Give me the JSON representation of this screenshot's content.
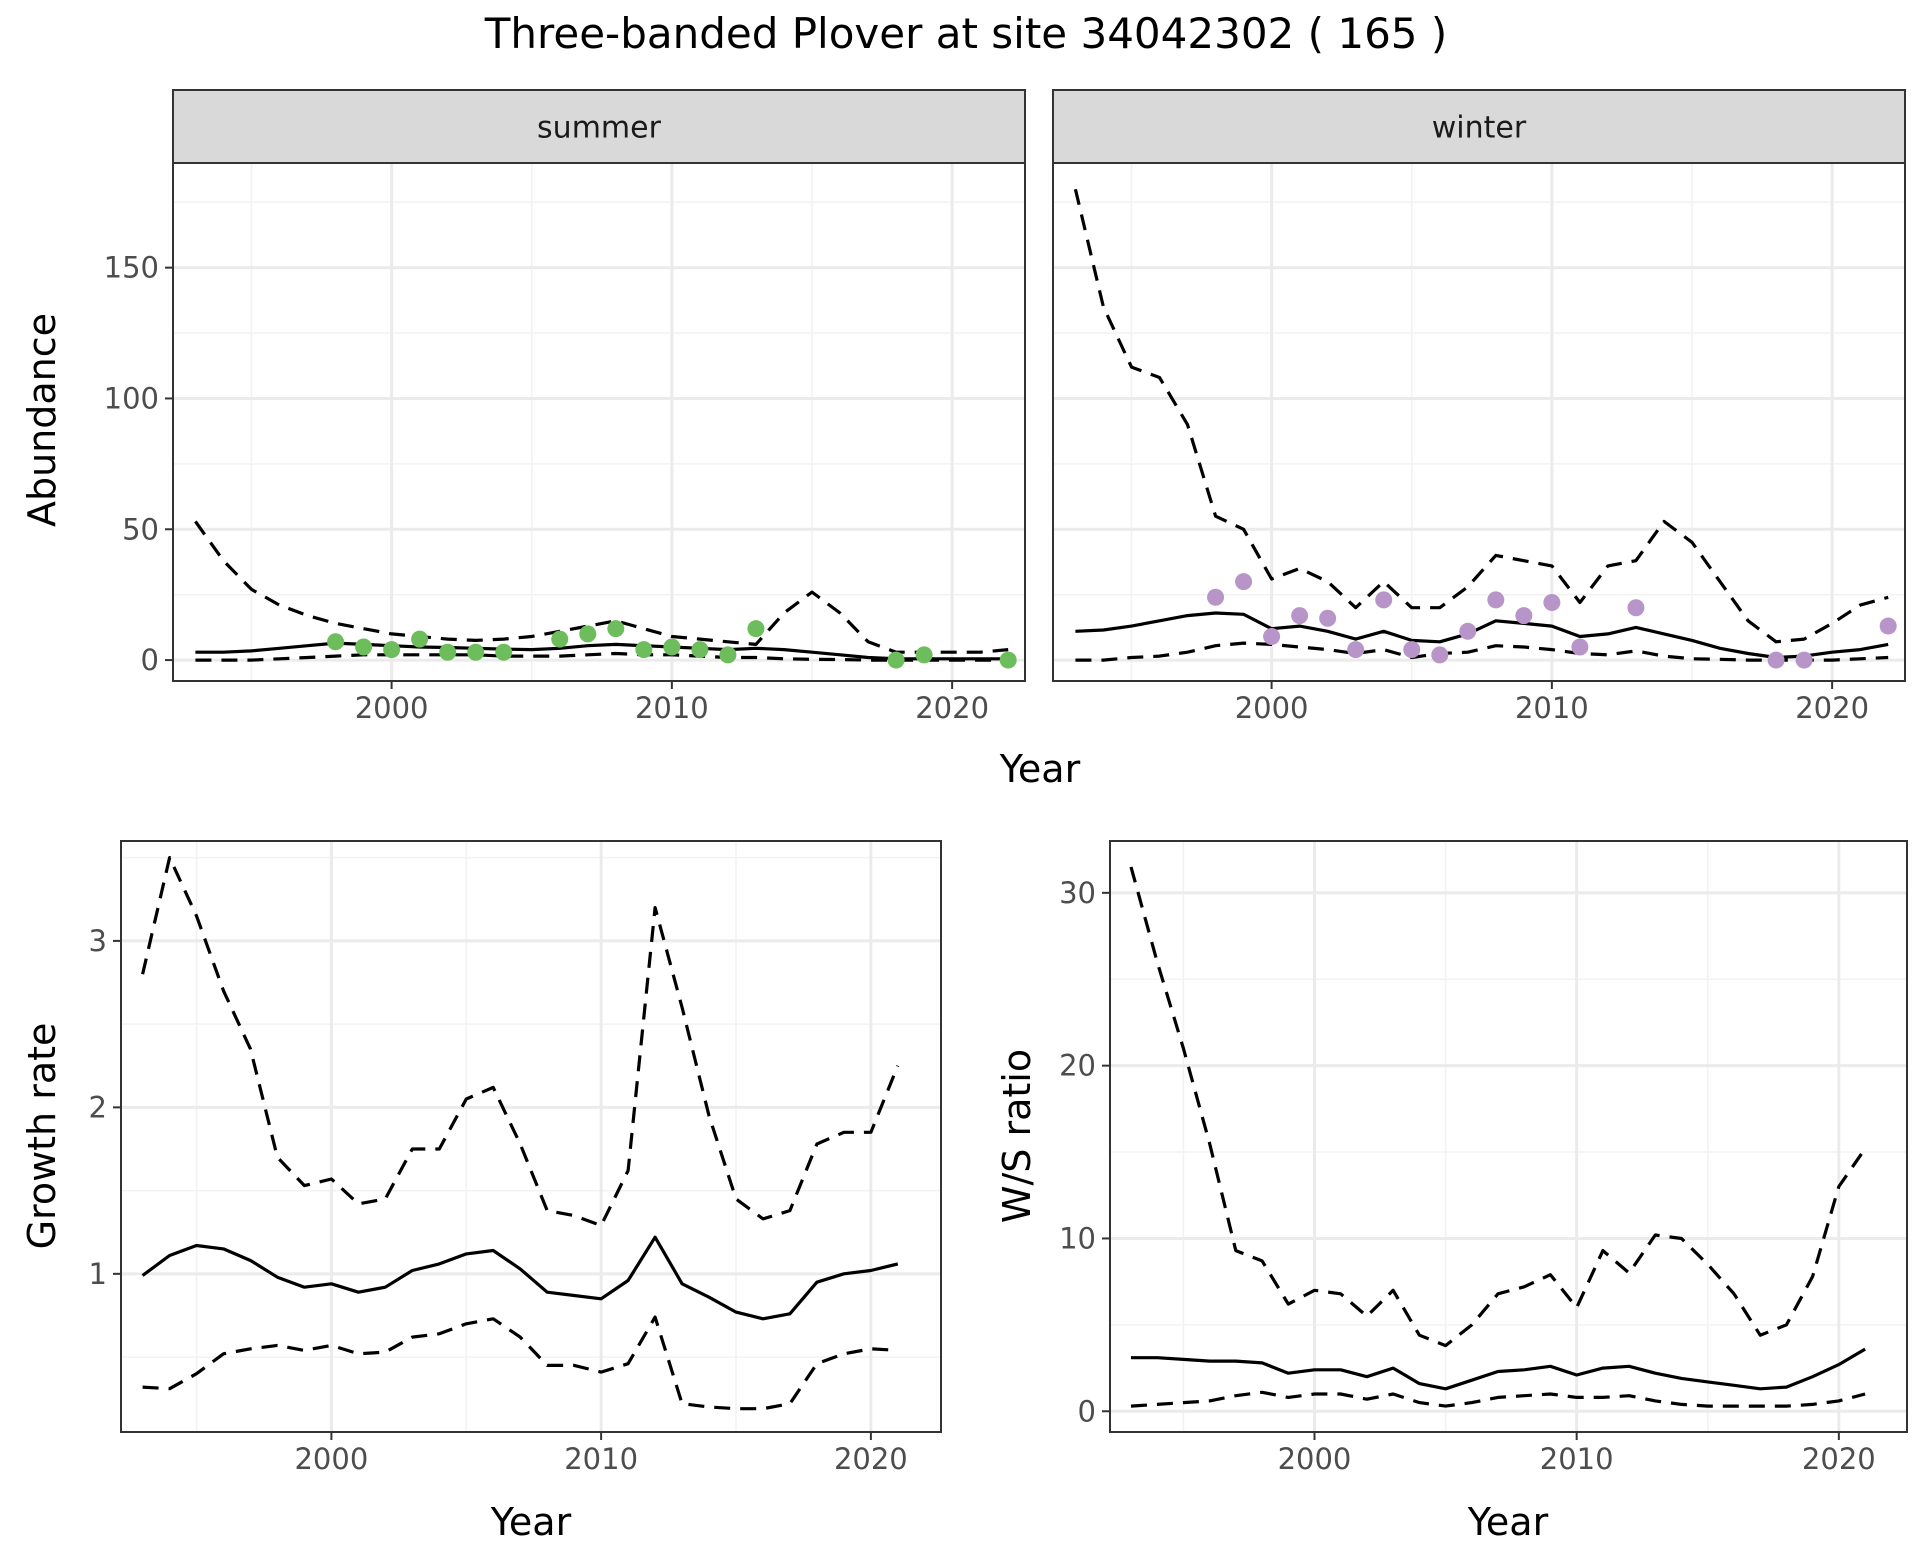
{
  "title": "Three-banded Plover at site 34042302 ( 165 )",
  "colors": {
    "summer_points": "#6dbd5c",
    "winter_points": "#b895c8",
    "lines": "#000000"
  },
  "chart_data": [
    {
      "type": "line",
      "facet": "summer",
      "xlabel": "Year",
      "ylabel": "Abundance",
      "xlim": [
        1992.2,
        2022.6
      ],
      "ylim": [
        -8,
        190
      ],
      "xticks": [
        2000,
        2010,
        2020
      ],
      "yticks": [
        0,
        50,
        100,
        150
      ],
      "grid": true,
      "x": [
        1993,
        1994,
        1995,
        1996,
        1997,
        1998,
        1999,
        2000,
        2001,
        2002,
        2003,
        2004,
        2005,
        2006,
        2007,
        2008,
        2009,
        2010,
        2011,
        2012,
        2013,
        2014,
        2015,
        2016,
        2017,
        2018,
        2019,
        2020,
        2021,
        2022
      ],
      "series": [
        {
          "role": "mean",
          "values": [
            3,
            3,
            3.5,
            4.5,
            5.5,
            6.5,
            6,
            5.5,
            5,
            4.8,
            4.5,
            4.2,
            4,
            4.5,
            5.5,
            6,
            5.5,
            5,
            4.5,
            4,
            4.5,
            4,
            3,
            2,
            1,
            0.5,
            0.5,
            0.5,
            0.5,
            0.5
          ]
        },
        {
          "role": "upper",
          "values": [
            53,
            38,
            27,
            21,
            17,
            14,
            12,
            10,
            9,
            8,
            7.5,
            8,
            9,
            11,
            13,
            15,
            12,
            9,
            8,
            7,
            6,
            18,
            26,
            18,
            7,
            3,
            3,
            3,
            3,
            4
          ]
        },
        {
          "role": "lower",
          "values": [
            0,
            0,
            0,
            0.5,
            1,
            1.5,
            2,
            2,
            2,
            2,
            2,
            1.5,
            1.5,
            1.5,
            2,
            2.5,
            2,
            2,
            1.5,
            1,
            1,
            0.5,
            0.3,
            0.2,
            0,
            0,
            0,
            0,
            0,
            0
          ]
        }
      ],
      "points": {
        "x": [
          1998,
          1999,
          2000,
          2001,
          2002,
          2003,
          2004,
          2006,
          2007,
          2008,
          2009,
          2010,
          2011,
          2012,
          2013,
          2018,
          2019,
          2022
        ],
        "y": [
          7,
          5,
          4,
          8,
          3,
          3,
          3,
          8,
          10,
          12,
          4,
          5,
          4,
          2,
          12,
          0,
          2,
          0
        ]
      }
    },
    {
      "type": "line",
      "facet": "winter",
      "xlabel": "Year",
      "ylabel": "Abundance",
      "xlim": [
        1992.2,
        2022.6
      ],
      "ylim": [
        -8,
        190
      ],
      "xticks": [
        2000,
        2010,
        2020
      ],
      "yticks": [
        0,
        50,
        100,
        150
      ],
      "grid": true,
      "x": [
        1993,
        1994,
        1995,
        1996,
        1997,
        1998,
        1999,
        2000,
        2001,
        2002,
        2003,
        2004,
        2005,
        2006,
        2007,
        2008,
        2009,
        2010,
        2011,
        2012,
        2013,
        2014,
        2015,
        2016,
        2017,
        2018,
        2019,
        2020,
        2021,
        2022
      ],
      "series": [
        {
          "role": "mean",
          "values": [
            11,
            11.5,
            13,
            15,
            17,
            18,
            17.5,
            12,
            13,
            11,
            8,
            11,
            7.5,
            7,
            10,
            15,
            14,
            13,
            9,
            10,
            12.5,
            10,
            7.5,
            4.5,
            2.5,
            1,
            1.5,
            3,
            4,
            6
          ]
        },
        {
          "role": "upper",
          "values": [
            180,
            135,
            112,
            108,
            90,
            55,
            50,
            31,
            35,
            30,
            20,
            30,
            20,
            20,
            28,
            40,
            38,
            36,
            22,
            36,
            38,
            53,
            45,
            30,
            15,
            7,
            8,
            14,
            21,
            24
          ]
        },
        {
          "role": "lower",
          "values": [
            0,
            0,
            1,
            1.5,
            3,
            5.5,
            6.5,
            6,
            5,
            4,
            2.5,
            4,
            1,
            2.5,
            3,
            5.5,
            5,
            4,
            2.5,
            2,
            3.5,
            1.5,
            0.5,
            0.3,
            0,
            0,
            0,
            0,
            0.5,
            1
          ]
        }
      ],
      "points": {
        "x": [
          1998,
          1999,
          2000,
          2001,
          2002,
          2003,
          2004,
          2005,
          2006,
          2007,
          2008,
          2009,
          2010,
          2011,
          2013,
          2018,
          2019,
          2022
        ],
        "y": [
          24,
          30,
          9,
          17,
          16,
          4,
          23,
          4,
          2,
          11,
          23,
          17,
          22,
          5,
          20,
          0,
          0,
          13
        ]
      }
    },
    {
      "type": "line",
      "xlabel": "Year",
      "ylabel": "Growth rate",
      "xlim": [
        1992.2,
        2022.6
      ],
      "ylim": [
        0.05,
        3.6
      ],
      "xticks": [
        2000,
        2010,
        2020
      ],
      "yticks": [
        1,
        2,
        3
      ],
      "grid": true,
      "x": [
        1993,
        1994,
        1995,
        1996,
        1997,
        1998,
        1999,
        2000,
        2001,
        2002,
        2003,
        2004,
        2005,
        2006,
        2007,
        2008,
        2009,
        2010,
        2011,
        2012,
        2013,
        2014,
        2015,
        2016,
        2017,
        2018,
        2019,
        2020,
        2021
      ],
      "series": [
        {
          "role": "mean",
          "values": [
            0.99,
            1.11,
            1.17,
            1.15,
            1.08,
            0.98,
            0.92,
            0.94,
            0.89,
            0.92,
            1.02,
            1.06,
            1.12,
            1.14,
            1.03,
            0.89,
            0.87,
            0.85,
            0.96,
            1.22,
            0.94,
            0.86,
            0.77,
            0.73,
            0.76,
            0.95,
            1.0,
            1.02,
            1.06
          ]
        },
        {
          "role": "upper",
          "values": [
            2.8,
            3.5,
            3.15,
            2.7,
            2.35,
            1.7,
            1.53,
            1.57,
            1.42,
            1.45,
            1.75,
            1.75,
            2.05,
            2.12,
            1.78,
            1.38,
            1.35,
            1.29,
            1.62,
            3.2,
            2.6,
            1.95,
            1.45,
            1.33,
            1.38,
            1.78,
            1.85,
            1.85,
            2.25
          ]
        },
        {
          "role": "lower",
          "values": [
            0.32,
            0.31,
            0.4,
            0.52,
            0.55,
            0.57,
            0.54,
            0.57,
            0.52,
            0.53,
            0.62,
            0.64,
            0.7,
            0.73,
            0.62,
            0.45,
            0.45,
            0.41,
            0.46,
            0.74,
            0.22,
            0.2,
            0.19,
            0.19,
            0.22,
            0.46,
            0.52,
            0.55,
            0.54
          ]
        }
      ]
    },
    {
      "type": "line",
      "xlabel": "Year",
      "ylabel": "W/S ratio",
      "xlim": [
        1992.2,
        2022.6
      ],
      "ylim": [
        -1.2,
        33
      ],
      "xticks": [
        2000,
        2010,
        2020
      ],
      "yticks": [
        0,
        10,
        20,
        30
      ],
      "grid": true,
      "x": [
        1993,
        1994,
        1995,
        1996,
        1997,
        1998,
        1999,
        2000,
        2001,
        2002,
        2003,
        2004,
        2005,
        2006,
        2007,
        2008,
        2009,
        2010,
        2011,
        2012,
        2013,
        2014,
        2015,
        2016,
        2017,
        2018,
        2019,
        2020,
        2021
      ],
      "series": [
        {
          "role": "mean",
          "values": [
            3.1,
            3.1,
            3.0,
            2.9,
            2.9,
            2.8,
            2.2,
            2.4,
            2.4,
            2.0,
            2.5,
            1.6,
            1.3,
            1.8,
            2.3,
            2.4,
            2.6,
            2.1,
            2.5,
            2.6,
            2.2,
            1.9,
            1.7,
            1.5,
            1.3,
            1.4,
            2.0,
            2.7,
            3.6
          ]
        },
        {
          "role": "upper",
          "values": [
            31.5,
            26,
            21,
            15.5,
            9.3,
            8.7,
            6.2,
            7.0,
            6.8,
            5.5,
            7.0,
            4.4,
            3.8,
            5.0,
            6.8,
            7.2,
            7.9,
            6.0,
            9.3,
            8.0,
            10.2,
            10.0,
            8.5,
            6.8,
            4.4,
            5.0,
            7.8,
            13.0,
            15.2
          ]
        },
        {
          "role": "lower",
          "values": [
            0.3,
            0.4,
            0.5,
            0.6,
            0.9,
            1.1,
            0.8,
            1.0,
            1.0,
            0.7,
            1.0,
            0.5,
            0.3,
            0.5,
            0.8,
            0.9,
            1.0,
            0.8,
            0.8,
            0.9,
            0.6,
            0.4,
            0.3,
            0.3,
            0.3,
            0.3,
            0.4,
            0.6,
            1.0
          ]
        }
      ]
    }
  ]
}
